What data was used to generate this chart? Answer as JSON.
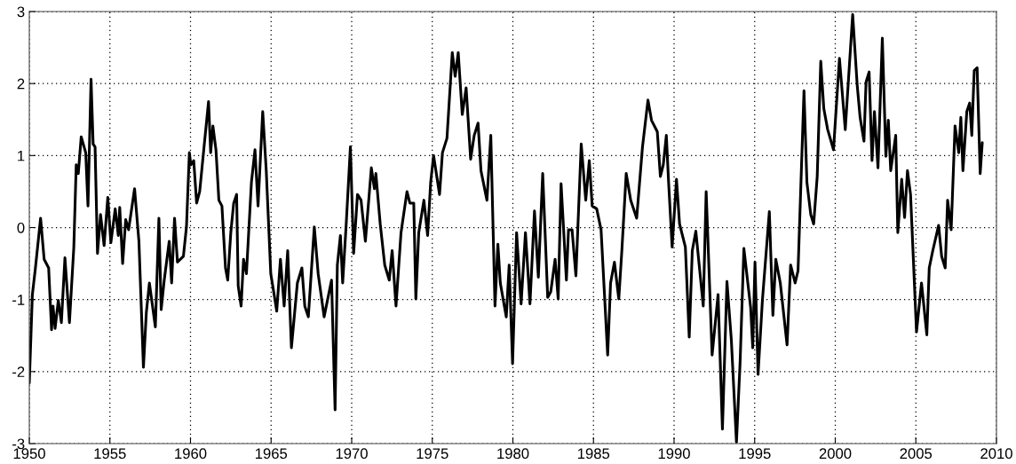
{
  "chart_data": {
    "type": "line",
    "x": [
      1950.0,
      1950.19,
      1950.37,
      1950.7,
      1950.92,
      1951.2,
      1951.38,
      1951.47,
      1951.6,
      1951.8,
      1951.99,
      1952.21,
      1952.49,
      1952.76,
      1952.91,
      1953.04,
      1953.22,
      1953.5,
      1953.64,
      1953.83,
      1953.96,
      1954.08,
      1954.23,
      1954.42,
      1954.64,
      1954.87,
      1955.06,
      1955.33,
      1955.52,
      1955.61,
      1955.79,
      1955.98,
      1956.16,
      1956.53,
      1956.8,
      1957.08,
      1957.26,
      1957.45,
      1957.82,
      1958.04,
      1958.18,
      1958.37,
      1958.68,
      1958.83,
      1959.01,
      1959.19,
      1959.56,
      1959.75,
      1959.93,
      1960.02,
      1960.2,
      1960.38,
      1960.57,
      1960.84,
      1961.12,
      1961.25,
      1961.39,
      1961.58,
      1961.76,
      1961.95,
      1962.17,
      1962.31,
      1962.5,
      1962.68,
      1962.86,
      1962.96,
      1963.14,
      1963.29,
      1963.47,
      1963.78,
      1964.0,
      1964.19,
      1964.48,
      1964.7,
      1964.98,
      1965.16,
      1965.35,
      1965.58,
      1965.81,
      1966.03,
      1966.26,
      1966.63,
      1966.91,
      1967.09,
      1967.31,
      1967.68,
      1967.92,
      1968.29,
      1968.75,
      1968.97,
      1969.11,
      1969.3,
      1969.44,
      1969.66,
      1969.92,
      1970.12,
      1970.36,
      1970.58,
      1970.85,
      1971.22,
      1971.41,
      1971.5,
      1971.77,
      1972.05,
      1972.33,
      1972.51,
      1972.75,
      1973.06,
      1973.43,
      1973.61,
      1973.85,
      1973.98,
      1974.16,
      1974.48,
      1974.71,
      1974.9,
      1975.08,
      1975.45,
      1975.63,
      1975.91,
      1976.24,
      1976.42,
      1976.61,
      1976.86,
      1977.1,
      1977.38,
      1977.6,
      1977.84,
      1978.02,
      1978.39,
      1978.63,
      1978.89,
      1979.07,
      1979.22,
      1979.59,
      1979.77,
      1979.98,
      1980.23,
      1980.51,
      1980.78,
      1981.06,
      1981.34,
      1981.58,
      1981.85,
      1982.16,
      1982.35,
      1982.62,
      1982.81,
      1982.99,
      1983.32,
      1983.45,
      1983.67,
      1983.91,
      1984.24,
      1984.52,
      1984.74,
      1984.92,
      1985.2,
      1985.47,
      1985.88,
      1986.06,
      1986.3,
      1986.57,
      1986.76,
      1987.03,
      1987.31,
      1987.68,
      1988.04,
      1988.38,
      1988.6,
      1988.96,
      1989.15,
      1989.33,
      1989.52,
      1989.66,
      1989.88,
      1990.15,
      1990.34,
      1990.7,
      1990.94,
      1991.13,
      1991.35,
      1991.81,
      1991.99,
      1992.36,
      1992.73,
      1993.0,
      1993.28,
      1993.55,
      1993.87,
      1994.1,
      1994.33,
      1994.75,
      1994.88,
      1995.02,
      1995.21,
      1995.48,
      1995.91,
      1996.13,
      1996.31,
      1996.59,
      1997.01,
      1997.23,
      1997.51,
      1997.69,
      1998.06,
      1998.24,
      1998.48,
      1998.66,
      1998.88,
      1999.1,
      1999.29,
      1999.53,
      1999.89,
      2000.26,
      2000.62,
      2001.08,
      2001.36,
      2001.54,
      2001.78,
      2001.91,
      2002.1,
      2002.28,
      2002.43,
      2002.65,
      2002.92,
      2003.14,
      2003.29,
      2003.44,
      2003.75,
      2003.88,
      2004.12,
      2004.3,
      2004.48,
      2004.67,
      2005.04,
      2005.35,
      2005.68,
      2005.83,
      2006.05,
      2006.41,
      2006.6,
      2006.82,
      2006.97,
      2007.19,
      2007.43,
      2007.66,
      2007.79,
      2007.92,
      2008.16,
      2008.34,
      2008.47,
      2008.62,
      2008.8,
      2008.99,
      2009.12
    ],
    "series": [
      {
        "color": "#000000",
        "values": [
          -2.16,
          -0.93,
          -0.58,
          0.13,
          -0.44,
          -0.56,
          -1.42,
          -1.09,
          -1.4,
          -1.01,
          -1.32,
          -0.42,
          -1.32,
          -0.28,
          0.87,
          0.75,
          1.26,
          1.04,
          0.3,
          2.06,
          1.16,
          1.12,
          -0.36,
          0.18,
          -0.25,
          0.42,
          -0.21,
          0.26,
          -0.11,
          0.28,
          -0.5,
          0.11,
          -0.03,
          0.54,
          -0.19,
          -1.94,
          -1.18,
          -0.77,
          -1.38,
          0.13,
          -1.14,
          -0.73,
          -0.19,
          -0.77,
          0.13,
          -0.48,
          -0.4,
          0.01,
          1.04,
          0.87,
          0.93,
          0.34,
          0.5,
          1.12,
          1.75,
          1.04,
          1.41,
          1.08,
          0.38,
          0.3,
          -0.56,
          -0.73,
          -0.07,
          0.34,
          0.46,
          -0.81,
          -1.09,
          -0.44,
          -0.64,
          0.63,
          1.08,
          0.3,
          1.61,
          0.79,
          -0.64,
          -0.89,
          -1.16,
          -0.44,
          -1.09,
          -0.32,
          -1.67,
          -0.77,
          -0.56,
          -1.09,
          -1.24,
          0.01,
          -0.64,
          -1.24,
          -0.73,
          -2.53,
          -0.52,
          -0.11,
          -0.77,
          0.05,
          1.12,
          -0.36,
          0.46,
          0.38,
          -0.19,
          0.83,
          0.54,
          0.75,
          0.05,
          -0.52,
          -0.73,
          -0.32,
          -1.09,
          -0.07,
          0.5,
          0.34,
          0.34,
          -0.99,
          -0.07,
          0.38,
          -0.11,
          0.63,
          1.0,
          0.46,
          1.04,
          1.24,
          2.43,
          2.1,
          2.43,
          1.57,
          1.94,
          0.95,
          1.28,
          1.45,
          0.79,
          0.38,
          1.28,
          -1.09,
          -0.23,
          -0.77,
          -1.24,
          -0.52,
          -1.89,
          -0.07,
          -1.06,
          -0.07,
          -1.06,
          0.23,
          -0.69,
          0.75,
          -0.97,
          -0.89,
          -0.44,
          -0.99,
          0.61,
          -0.73,
          -0.03,
          -0.03,
          -0.67,
          1.16,
          0.38,
          0.93,
          0.3,
          0.26,
          -0.03,
          -1.77,
          -0.77,
          -0.48,
          -0.99,
          -0.32,
          0.75,
          0.38,
          0.13,
          1.12,
          1.77,
          1.49,
          1.33,
          0.71,
          0.87,
          1.28,
          0.63,
          -0.27,
          0.67,
          0.05,
          -0.27,
          -1.52,
          -0.32,
          -0.05,
          -1.09,
          0.5,
          -1.77,
          -0.93,
          -2.8,
          -0.75,
          -1.55,
          -2.98,
          -1.85,
          -0.29,
          -1.11,
          -1.67,
          -0.48,
          -2.04,
          -1.01,
          0.22,
          -1.22,
          -0.44,
          -0.77,
          -1.63,
          -0.52,
          -0.77,
          -0.6,
          1.9,
          0.63,
          0.18,
          0.05,
          0.71,
          2.31,
          1.65,
          1.36,
          1.08,
          2.35,
          1.36,
          2.96,
          1.98,
          1.53,
          1.2,
          2.02,
          2.16,
          0.93,
          1.61,
          0.83,
          2.63,
          0.99,
          1.49,
          0.79,
          1.28,
          -0.07,
          0.67,
          0.14,
          0.79,
          0.46,
          -1.45,
          -0.77,
          -1.49,
          -0.56,
          -0.32,
          0.03,
          -0.4,
          -0.56,
          0.38,
          -0.03,
          1.41,
          1.04,
          1.53,
          0.79,
          1.61,
          1.73,
          1.28,
          2.18,
          2.22,
          0.75,
          1.18
        ]
      }
    ],
    "xlim": [
      1950,
      2010
    ],
    "xticks": [
      1950,
      1955,
      1960,
      1965,
      1970,
      1975,
      1980,
      1985,
      1990,
      1995,
      2000,
      2005,
      2010
    ],
    "ylim": [
      -3,
      3
    ],
    "yticks": [
      -3,
      -2,
      -1,
      0,
      1,
      2,
      3
    ],
    "grid": true
  }
}
